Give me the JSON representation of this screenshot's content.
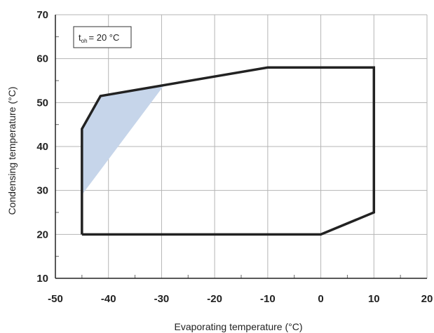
{
  "chart_data": {
    "type": "line",
    "title": "",
    "xlabel": "Evaporating temperature (°C)",
    "ylabel": "Condensing temperature (°C)",
    "xlim": [
      -50,
      20
    ],
    "ylim": [
      10,
      70
    ],
    "x_ticks": [
      -50,
      -40,
      -30,
      -20,
      -10,
      0,
      10,
      20
    ],
    "y_ticks": [
      10,
      20,
      30,
      40,
      50,
      60,
      70
    ],
    "x_tick_labels": [
      "-50",
      "-40",
      "-30",
      "-20",
      "-10",
      "0",
      "10",
      "20"
    ],
    "y_tick_labels": [
      "10",
      "20",
      "30",
      "40",
      "50",
      "60",
      "70"
    ],
    "grid": true,
    "annotation": {
      "base": "t",
      "subscript": "oh",
      "rest": "= 20 °C"
    },
    "envelope": [
      {
        "x": -45,
        "y": 20
      },
      {
        "x": -45,
        "y": 44
      },
      {
        "x": -41.5,
        "y": 51.5
      },
      {
        "x": -10,
        "y": 58
      },
      {
        "x": 10,
        "y": 58
      },
      {
        "x": 10,
        "y": 25
      },
      {
        "x": 0,
        "y": 20
      },
      {
        "x": -45,
        "y": 20
      }
    ],
    "shaded_region": [
      {
        "x": -45,
        "y": 29
      },
      {
        "x": -45,
        "y": 44
      },
      {
        "x": -41.5,
        "y": 51.5
      },
      {
        "x": -29.5,
        "y": 54
      }
    ],
    "colors": {
      "envelope": "#222222",
      "shaded": "#c6d5ea",
      "grid": "#b5b5b5"
    }
  }
}
